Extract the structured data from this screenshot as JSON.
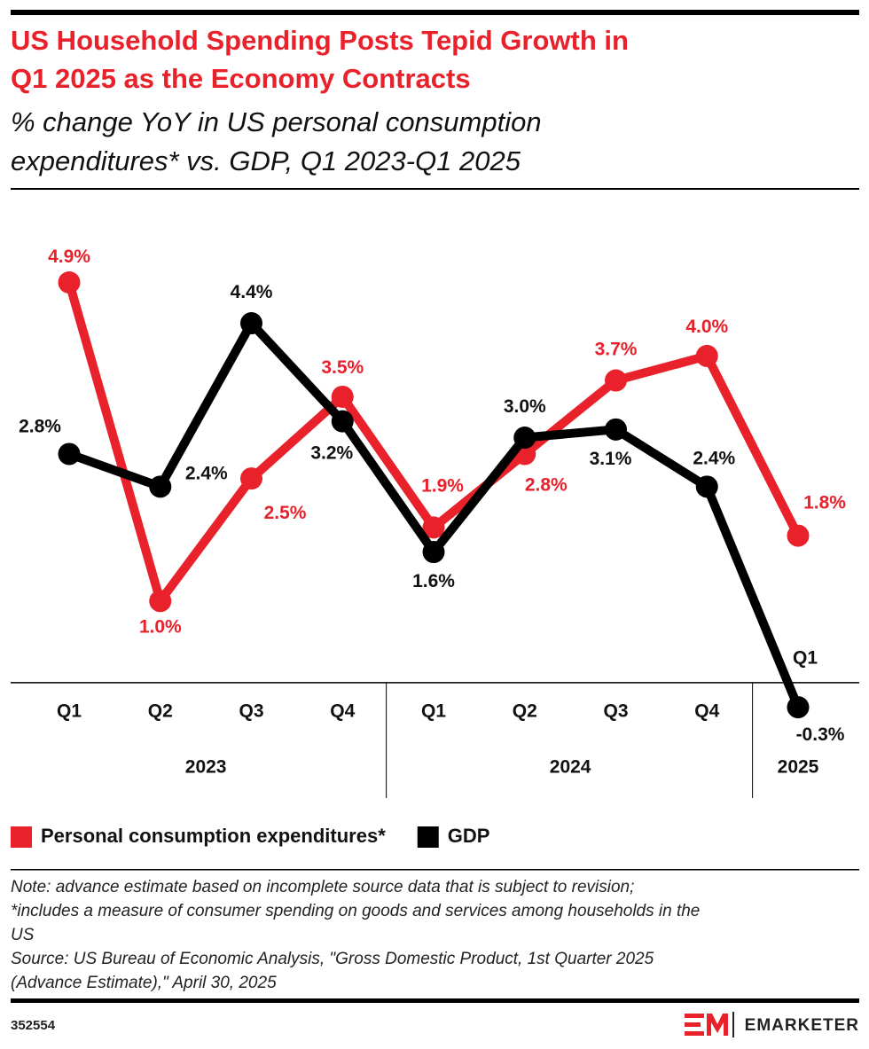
{
  "chart_data": {
    "type": "line",
    "title": [
      "US Household Spending Posts Tepid Growth in",
      "Q1 2025 as the Economy Contracts"
    ],
    "subtitle": [
      "% change YoY in US personal consumption",
      "expenditures* vs. GDP, Q1 2023-Q1 2025"
    ],
    "categories": [
      "Q1",
      "Q2",
      "Q3",
      "Q4",
      "Q1",
      "Q2",
      "Q3",
      "Q4",
      "Q1"
    ],
    "year_groups": [
      {
        "label": "2023",
        "span": 4
      },
      {
        "label": "2024",
        "span": 4
      },
      {
        "label": "2025",
        "span": 1
      }
    ],
    "ylim": [
      -0.5,
      5.6
    ],
    "series": [
      {
        "name": "Personal consumption expenditures*",
        "color": "#e8212b",
        "values": [
          4.9,
          1.0,
          2.5,
          3.5,
          1.9,
          2.8,
          3.7,
          4.0,
          1.8
        ],
        "value_labels": [
          "4.9%",
          "1.0%",
          "2.5%",
          "3.5%",
          "1.9%",
          "2.8%",
          "3.7%",
          "4.0%",
          "1.8%"
        ]
      },
      {
        "name": "GDP",
        "color": "#000000",
        "values": [
          2.8,
          2.4,
          4.4,
          3.2,
          1.6,
          3.0,
          3.1,
          2.4,
          -0.3
        ],
        "value_labels": [
          "2.8%",
          "2.4%",
          "4.4%",
          "3.2%",
          "1.6%",
          "3.0%",
          "3.1%",
          "2.4%",
          "-0.3%"
        ]
      }
    ],
    "note": [
      "Note: advance estimate based on incomplete source data that is subject to revision;",
      "*includes a measure of consumer spending on goods and services among households in the",
      "US"
    ],
    "source": [
      "Source: US Bureau of Economic Analysis, \"Gross Domestic Product, 1st Quarter 2025",
      "(Advance Estimate),\" April 30, 2025"
    ],
    "chart_id": "352554",
    "brand": "EMARKETER"
  }
}
